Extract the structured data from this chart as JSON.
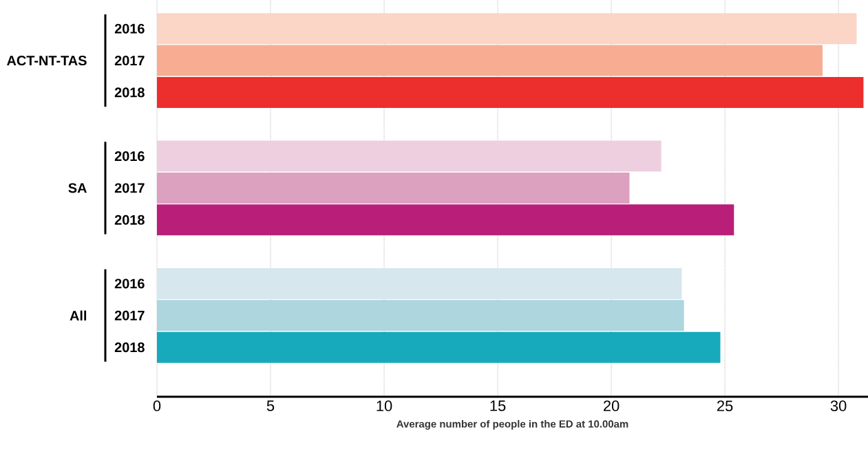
{
  "chart_data": {
    "type": "bar",
    "orientation": "horizontal",
    "xlabel": "Average number of people in the ED at 10.00am",
    "categories": [
      "2016",
      "2017",
      "2018",
      null,
      "2016",
      "2017",
      "2018",
      null,
      "2016",
      "2017",
      "2018"
    ],
    "values": [
      30.8,
      29.3,
      31.1,
      null,
      22.2,
      20.8,
      25.4,
      null,
      23.1,
      23.2,
      24.8
    ],
    "colors": [
      "#fbd5c5",
      "#f8ad93",
      "#ec2e2c",
      "#ffffff",
      "#edcfdf",
      "#dba1bf",
      "#b91e78",
      "#ffffff",
      "#d6e8ee",
      "#add6de",
      "#17a9bc"
    ],
    "annotations": [
      "ACT-NT-TAS",
      "SA",
      "All"
    ],
    "xlim": [
      0,
      31.3
    ],
    "xticks": [
      0,
      5,
      10,
      15,
      20,
      25,
      30
    ],
    "grid": "x"
  }
}
